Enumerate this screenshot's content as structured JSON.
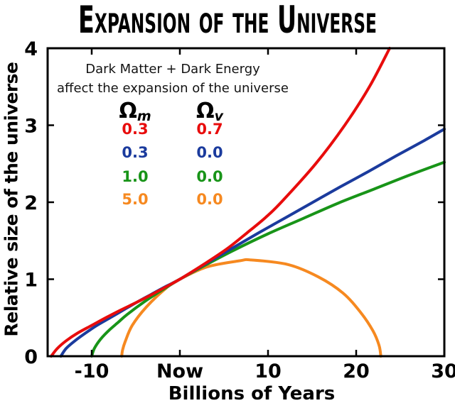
{
  "title": "Expansion of the Universe",
  "legend": {
    "caption_line1": "Dark Matter + Dark Energy",
    "caption_line2": "affect the expansion of the universe",
    "col_headers": [
      {
        "symbol": "Ω",
        "sub": "m"
      },
      {
        "symbol": "Ω",
        "sub": "v"
      }
    ],
    "rows": [
      {
        "om": "0.3",
        "ov": "0.7",
        "color": "#e80c0c"
      },
      {
        "om": "0.3",
        "ov": "0.0",
        "color": "#1b3b9d"
      },
      {
        "om": "1.0",
        "ov": "0.0",
        "color": "#189418"
      },
      {
        "om": "5.0",
        "ov": "0.0",
        "color": "#f68920"
      }
    ]
  },
  "chart_data": {
    "type": "line",
    "title": "Expansion of the Universe",
    "xlabel": "Billions of Years",
    "ylabel": "Relative size of the universe",
    "xlim": [
      -15,
      30
    ],
    "ylim": [
      0,
      4
    ],
    "grid": false,
    "legend_position": "upper-left-inside",
    "frame_color": "#000000",
    "x_ticks": [
      {
        "v": -10,
        "label": "-10"
      },
      {
        "v": 0,
        "label": "Now"
      },
      {
        "v": 10,
        "label": "10"
      },
      {
        "v": 20,
        "label": "20"
      },
      {
        "v": 30,
        "label": "30"
      }
    ],
    "y_ticks": [
      {
        "v": 0,
        "label": "0"
      },
      {
        "v": 1,
        "label": "1"
      },
      {
        "v": 2,
        "label": "2"
      },
      {
        "v": 3,
        "label": "3"
      },
      {
        "v": 4,
        "label": "4"
      }
    ],
    "series": [
      {
        "name": "Omega_m 0.3, Omega_v 0.7",
        "slug": "curve-red-dark-energy",
        "color": "#e80c0c",
        "points": [
          [
            -14.6,
            0
          ],
          [
            -13.9,
            0.1
          ],
          [
            -12.9,
            0.2
          ],
          [
            -11.6,
            0.3
          ],
          [
            -10.0,
            0.4
          ],
          [
            -8.4,
            0.5
          ],
          [
            -6.7,
            0.6
          ],
          [
            -4.9,
            0.7
          ],
          [
            -3.2,
            0.8
          ],
          [
            -1.6,
            0.9
          ],
          [
            0,
            1.0
          ],
          [
            2.8,
            1.2
          ],
          [
            5.4,
            1.4
          ],
          [
            7.6,
            1.6
          ],
          [
            9.7,
            1.8
          ],
          [
            11.5,
            2.0
          ],
          [
            15.4,
            2.5
          ],
          [
            18.7,
            3.0
          ],
          [
            21.5,
            3.5
          ],
          [
            23.8,
            4.0
          ]
        ]
      },
      {
        "name": "Omega_m 0.3, Omega_v 0.0",
        "slug": "curve-blue-open",
        "color": "#1b3b9d",
        "points": [
          [
            -13.5,
            0
          ],
          [
            -12.9,
            0.1
          ],
          [
            -11.9,
            0.2
          ],
          [
            -10.7,
            0.3
          ],
          [
            -9.4,
            0.4
          ],
          [
            -7.9,
            0.5
          ],
          [
            -6.4,
            0.6
          ],
          [
            -4.9,
            0.7
          ],
          [
            -3.3,
            0.8
          ],
          [
            -1.7,
            0.9
          ],
          [
            0,
            1.0
          ],
          [
            2.9,
            1.2
          ],
          [
            5.9,
            1.4
          ],
          [
            8.9,
            1.6
          ],
          [
            12.0,
            1.8
          ],
          [
            15.1,
            2.0
          ],
          [
            18.2,
            2.2
          ],
          [
            21.4,
            2.4
          ],
          [
            24.5,
            2.6
          ],
          [
            27.7,
            2.8
          ],
          [
            30,
            2.95
          ]
        ]
      },
      {
        "name": "Omega_m 1.0, Omega_v 0.0",
        "slug": "curve-green-critical",
        "color": "#189418",
        "points": [
          [
            -10,
            0
          ],
          [
            -9.7,
            0.1
          ],
          [
            -9,
            0.22
          ],
          [
            -8,
            0.34
          ],
          [
            -7,
            0.44
          ],
          [
            -6,
            0.54
          ],
          [
            -4,
            0.71
          ],
          [
            -2,
            0.86
          ],
          [
            0,
            1.0
          ],
          [
            3,
            1.19
          ],
          [
            6,
            1.37
          ],
          [
            10,
            1.59
          ],
          [
            14,
            1.79
          ],
          [
            18,
            1.99
          ],
          [
            22,
            2.17
          ],
          [
            26,
            2.35
          ],
          [
            30,
            2.52
          ]
        ]
      },
      {
        "name": "Omega_m 5.0, Omega_v 0.0",
        "slug": "curve-orange-closed",
        "color": "#f68920",
        "points": [
          [
            -6.6,
            0
          ],
          [
            -6.5,
            0.08
          ],
          [
            -6.2,
            0.19
          ],
          [
            -5.4,
            0.4
          ],
          [
            -3.8,
            0.64
          ],
          [
            -1.5,
            0.89
          ],
          [
            0,
            1.0
          ],
          [
            3.1,
            1.16
          ],
          [
            6.8,
            1.24
          ],
          [
            8.1,
            1.25
          ],
          [
            12.3,
            1.19
          ],
          [
            15.7,
            1.03
          ],
          [
            18.5,
            0.82
          ],
          [
            20.5,
            0.57
          ],
          [
            21.9,
            0.33
          ],
          [
            22.6,
            0.14
          ],
          [
            22.8,
            0
          ]
        ]
      }
    ]
  }
}
